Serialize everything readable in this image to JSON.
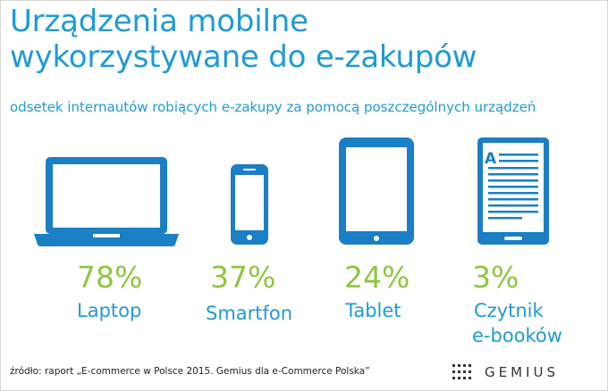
{
  "title_line1": "Urządzenia mobilne",
  "title_line2": "wykorzystywane do e-zakupów",
  "subtitle": "odsetek internautów robiących e-zakupy za pomocą poszczególnych urządzeń",
  "footer": "źródło: raport „E-commerce w Polsce 2015. Gemius dla e-Commerce Polska”",
  "brand": "GEMIUS",
  "colors": {
    "title": "#1f9ad6",
    "value": "#8dc63f",
    "icon": "#1a7fc4"
  },
  "chart_data": {
    "type": "bar",
    "categories": [
      "Laptop",
      "Smartfon",
      "Tablet",
      "Czytnik e-booków"
    ],
    "values": [
      78,
      37,
      24,
      3
    ],
    "value_labels": [
      "78%",
      "37%",
      "24%",
      "3%"
    ],
    "label_lines": [
      [
        "Laptop"
      ],
      [
        "Smartfon"
      ],
      [
        "Tablet"
      ],
      [
        "Czytnik",
        "e-booków"
      ]
    ],
    "icons": [
      "laptop-icon",
      "smartphone-icon",
      "tablet-icon",
      "ereader-icon"
    ],
    "unit": "%"
  }
}
